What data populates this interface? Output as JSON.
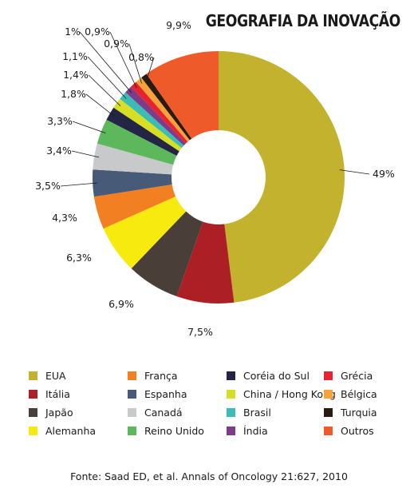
{
  "chart_data": {
    "type": "pie",
    "title": "GEOGRAFIA DA INOVAÇÃO",
    "categories": [
      "EUA",
      "Itália",
      "Japão",
      "Alemanha",
      "França",
      "Espanha",
      "Canadá",
      "Reino Unido",
      "Coréia do Sul",
      "China / Hong Kong",
      "Brasil",
      "Índia",
      "Grécia",
      "Bélgica",
      "Turquia",
      "Outros"
    ],
    "values": [
      49,
      7.5,
      6.9,
      6.3,
      4.3,
      3.5,
      3.4,
      3.3,
      1.8,
      1.4,
      1.1,
      1,
      0.9,
      0.9,
      0.8,
      9.9
    ],
    "value_labels": [
      "49%",
      "7,5%",
      "6,9%",
      "6,3%",
      "4,3%",
      "3,5%",
      "3,4%",
      "3,3%",
      "1,8%",
      "1,4%",
      "1,1%",
      "1%",
      "0,9%",
      "0,9%",
      "0,8%",
      "9,9%"
    ],
    "colors": [
      "#c2b22d",
      "#ac1f24",
      "#4a3f38",
      "#f6ea0f",
      "#f28022",
      "#475a78",
      "#c8c9cb",
      "#5cb85a",
      "#242545",
      "#d6df24",
      "#3bbcb4",
      "#7e3a8b",
      "#e7232e",
      "#f7a339",
      "#2a1a12",
      "#ee5a2a"
    ],
    "legend": {
      "placement": "bottom",
      "columns": [
        [
          "EUA",
          "Itália",
          "Japão",
          "Alemanha"
        ],
        [
          "França",
          "Espanha",
          "Canadá",
          "Reino Unido"
        ],
        [
          "Coréia do Sul",
          "China / Hong Kong",
          "Brasil",
          "Índia"
        ],
        [
          "Grécia",
          "Bélgica",
          "Turquia",
          "Outros"
        ]
      ]
    },
    "inner_hole": true
  },
  "source": "Fonte: Saad ED, et al. Annals of Oncology 21:627, 2010"
}
